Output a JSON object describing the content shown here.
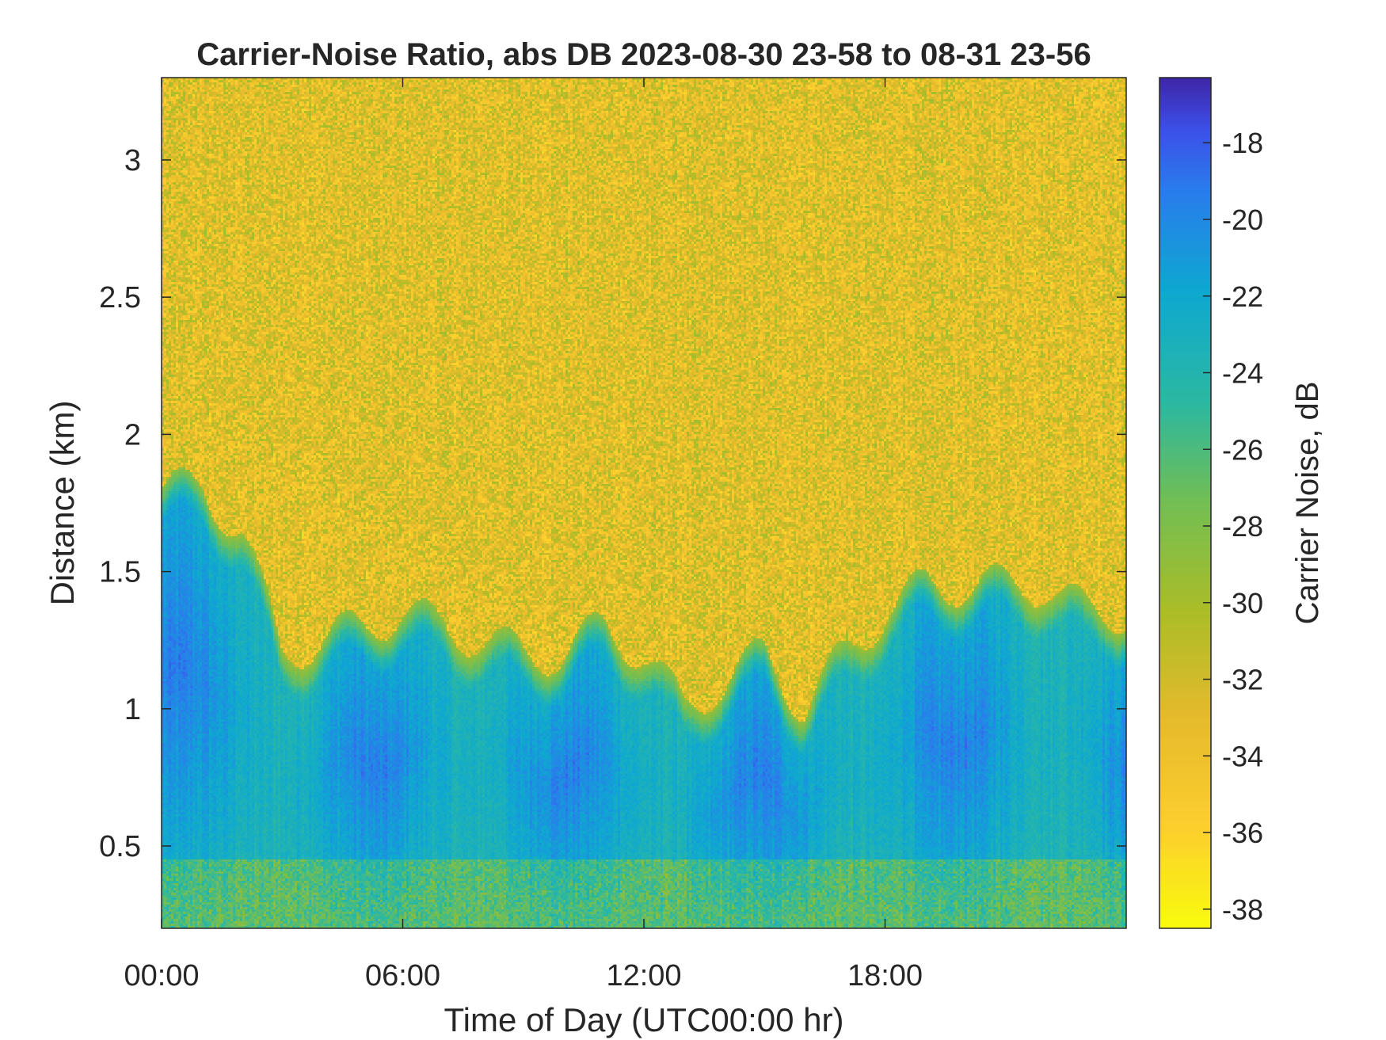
{
  "chart_data": {
    "type": "heatmap",
    "title": "Carrier-Noise Ratio, abs DB 2023-08-30 23-58 to 08-31 23-56",
    "xlabel": "Time of Day (UTC00:00 hr)",
    "ylabel": "Distance (km)",
    "colorbar_label": "Carrier Noise, dB",
    "x_ticks": [
      "00:00",
      "06:00",
      "12:00",
      "18:00"
    ],
    "x_tick_hours": [
      0,
      6,
      12,
      18
    ],
    "xlim_hours": [
      0,
      24
    ],
    "y_ticks": [
      "0.5",
      "1",
      "1.5",
      "2",
      "2.5",
      "3"
    ],
    "y_tick_values": [
      0.5,
      1,
      1.5,
      2,
      2.5,
      3
    ],
    "ylim": [
      0.2,
      3.3
    ],
    "colorbar_ticks": [
      "-18",
      "-20",
      "-22",
      "-24",
      "-26",
      "-28",
      "-30",
      "-32",
      "-34",
      "-36",
      "-38"
    ],
    "colorbar_tick_values": [
      -18,
      -20,
      -22,
      -24,
      -26,
      -28,
      -30,
      -32,
      -34,
      -36,
      -38
    ],
    "clim": [
      -38.5,
      -16.3
    ],
    "colormap": "parula-reversed",
    "grid": false,
    "boundary_layer_top_km": {
      "hours": [
        0,
        1,
        2,
        3,
        4,
        5,
        6,
        7,
        8,
        9,
        10,
        11,
        12,
        13,
        14,
        15,
        16,
        17,
        18,
        19,
        20,
        21,
        22,
        23,
        24
      ],
      "values": [
        1.8,
        1.8,
        1.65,
        1.2,
        1.25,
        1.3,
        1.35,
        1.3,
        1.25,
        1.2,
        1.2,
        1.3,
        1.2,
        1.0,
        1.1,
        1.2,
        1.0,
        1.2,
        1.35,
        1.45,
        1.45,
        1.45,
        1.45,
        1.35,
        1.35
      ]
    },
    "value_above_layer_db": -33,
    "value_in_layer_db": -24,
    "core_minimum_db": -18.5
  }
}
